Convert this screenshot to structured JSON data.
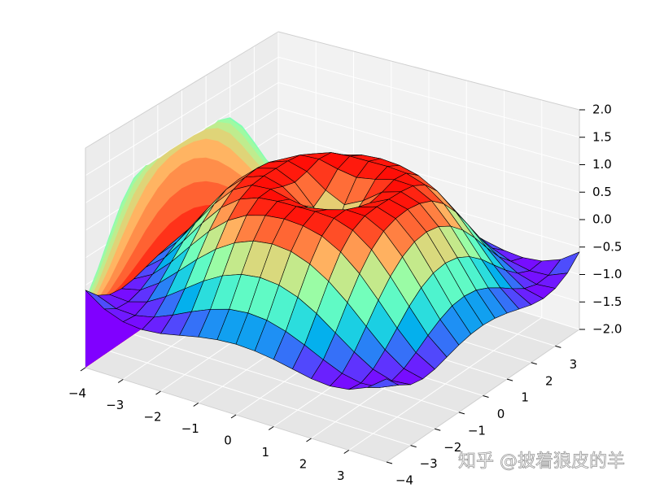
{
  "chart_data": {
    "type": "surface3d",
    "colormap": "rainbow",
    "grid": true,
    "edge_color": "#000000",
    "pane_colors": [
      "#e6e6e6",
      "#ececec",
      "#f2f2f2"
    ],
    "watermark": "知乎 @披着狼皮的羊",
    "x": [
      -4,
      -3.5,
      -3,
      -2.5,
      -2,
      -1.5,
      -1,
      -0.5,
      0,
      0.5,
      1,
      1.5,
      2,
      2.5,
      3,
      3.5,
      4
    ],
    "y": [
      -4,
      -3.5,
      -3,
      -2.5,
      -2,
      -1.5,
      -1,
      -0.5,
      0,
      0.5,
      1,
      1.5,
      2,
      2.5,
      3,
      3.5,
      4
    ],
    "z": [
      [
        -0.59,
        -0.83,
        -0.96,
        -1,
        -0.97,
        -0.9,
        -0.83,
        -0.78,
        -0.76,
        -0.78,
        -0.83,
        -0.9,
        -0.97,
        -1,
        -0.96,
        -0.83,
        -0.59
      ],
      [
        -0.83,
        -0.97,
        -0.99,
        -0.92,
        -0.78,
        -0.62,
        -0.48,
        -0.38,
        -0.35,
        -0.38,
        -0.48,
        -0.62,
        -0.78,
        -0.92,
        -0.99,
        -0.97,
        -0.83
      ],
      [
        -0.96,
        -0.99,
        -0.89,
        -0.69,
        -0.45,
        -0.21,
        -0.02,
        0.1,
        0.14,
        0.1,
        -0.02,
        -0.21,
        -0.45,
        -0.69,
        -0.89,
        -0.99,
        -0.96
      ],
      [
        -1,
        -0.92,
        -0.69,
        -0.38,
        -0.06,
        0.22,
        0.43,
        0.56,
        0.6,
        0.56,
        0.43,
        0.22,
        -0.06,
        -0.38,
        -0.69,
        -0.92,
        -1
      ],
      [
        -0.97,
        -0.78,
        -0.45,
        -0.06,
        0.31,
        0.6,
        0.79,
        0.88,
        0.91,
        0.88,
        0.79,
        0.6,
        0.31,
        -0.06,
        -0.45,
        -0.78,
        -0.97
      ],
      [
        -0.9,
        -0.62,
        -0.21,
        0.22,
        0.6,
        0.85,
        0.97,
        1,
        1,
        1,
        0.97,
        0.85,
        0.6,
        0.22,
        -0.21,
        -0.62,
        -0.9
      ],
      [
        -0.83,
        -0.48,
        -0.02,
        0.43,
        0.79,
        0.97,
        0.99,
        0.9,
        0.84,
        0.9,
        0.99,
        0.97,
        0.79,
        0.43,
        -0.02,
        -0.48,
        -0.83
      ],
      [
        -0.78,
        -0.38,
        0.1,
        0.56,
        0.88,
        1,
        0.9,
        0.65,
        0.48,
        0.65,
        0.9,
        1,
        0.88,
        0.56,
        0.1,
        -0.38,
        -0.78
      ],
      [
        -0.76,
        -0.35,
        0.14,
        0.6,
        0.91,
        1,
        0.84,
        0.48,
        0,
        0.48,
        0.84,
        1,
        0.91,
        0.6,
        0.14,
        -0.35,
        -0.76
      ],
      [
        -0.78,
        -0.38,
        0.1,
        0.56,
        0.88,
        1,
        0.9,
        0.65,
        0.48,
        0.65,
        0.9,
        1,
        0.88,
        0.56,
        0.1,
        -0.38,
        -0.78
      ],
      [
        -0.83,
        -0.48,
        -0.02,
        0.43,
        0.79,
        0.97,
        0.99,
        0.9,
        0.84,
        0.9,
        0.99,
        0.97,
        0.79,
        0.43,
        -0.02,
        -0.48,
        -0.83
      ],
      [
        -0.9,
        -0.62,
        -0.21,
        0.22,
        0.6,
        0.85,
        0.97,
        1,
        1,
        1,
        0.97,
        0.85,
        0.6,
        0.22,
        -0.21,
        -0.62,
        -0.9
      ],
      [
        -0.97,
        -0.78,
        -0.45,
        -0.06,
        0.31,
        0.6,
        0.79,
        0.88,
        0.91,
        0.88,
        0.79,
        0.6,
        0.31,
        -0.06,
        -0.45,
        -0.78,
        -0.97
      ],
      [
        -1,
        -0.92,
        -0.69,
        -0.38,
        -0.06,
        0.22,
        0.43,
        0.56,
        0.6,
        0.56,
        0.43,
        0.22,
        -0.06,
        -0.38,
        -0.69,
        -0.92,
        -1
      ],
      [
        -0.96,
        -0.99,
        -0.89,
        -0.69,
        -0.45,
        -0.21,
        -0.02,
        0.1,
        0.14,
        0.1,
        -0.02,
        -0.21,
        -0.45,
        -0.69,
        -0.89,
        -0.99,
        -0.96
      ],
      [
        -0.83,
        -0.97,
        -0.99,
        -0.92,
        -0.78,
        -0.62,
        -0.48,
        -0.38,
        -0.35,
        -0.38,
        -0.48,
        -0.62,
        -0.78,
        -0.92,
        -0.99,
        -0.97,
        -0.83
      ],
      [
        -0.59,
        -0.83,
        -0.96,
        -1,
        -0.97,
        -0.9,
        -0.83,
        -0.78,
        -0.76,
        -0.78,
        -0.83,
        -0.9,
        -0.97,
        -1,
        -0.96,
        -0.83,
        -0.59
      ]
    ],
    "xlim": [
      -4,
      4
    ],
    "ylim": [
      -4,
      4
    ],
    "zlim": [
      -2,
      2
    ],
    "xticks": [
      {
        "value": -4,
        "label": "−4"
      },
      {
        "value": -3,
        "label": "−3"
      },
      {
        "value": -2,
        "label": "−2"
      },
      {
        "value": -1,
        "label": "−1"
      },
      0,
      1,
      2,
      3
    ],
    "yticks": [
      {
        "value": -4,
        "label": "−4"
      },
      {
        "value": -3,
        "label": "−3"
      },
      {
        "value": -2,
        "label": "−2"
      },
      {
        "value": -1,
        "label": "−1"
      },
      0,
      1,
      2,
      3
    ],
    "zticks": [
      {
        "value": -2,
        "label": "−2.0"
      },
      {
        "value": -1.5,
        "label": "−1.5"
      },
      {
        "value": -1,
        "label": "−1.0"
      },
      {
        "value": -0.5,
        "label": "−0.5"
      },
      {
        "value": 0,
        "label": "0.0"
      },
      {
        "value": 0.5,
        "label": "0.5"
      },
      {
        "value": 1,
        "label": "1.0"
      },
      {
        "value": 1.5,
        "label": "1.5"
      },
      {
        "value": 2,
        "label": "2.0"
      }
    ]
  }
}
